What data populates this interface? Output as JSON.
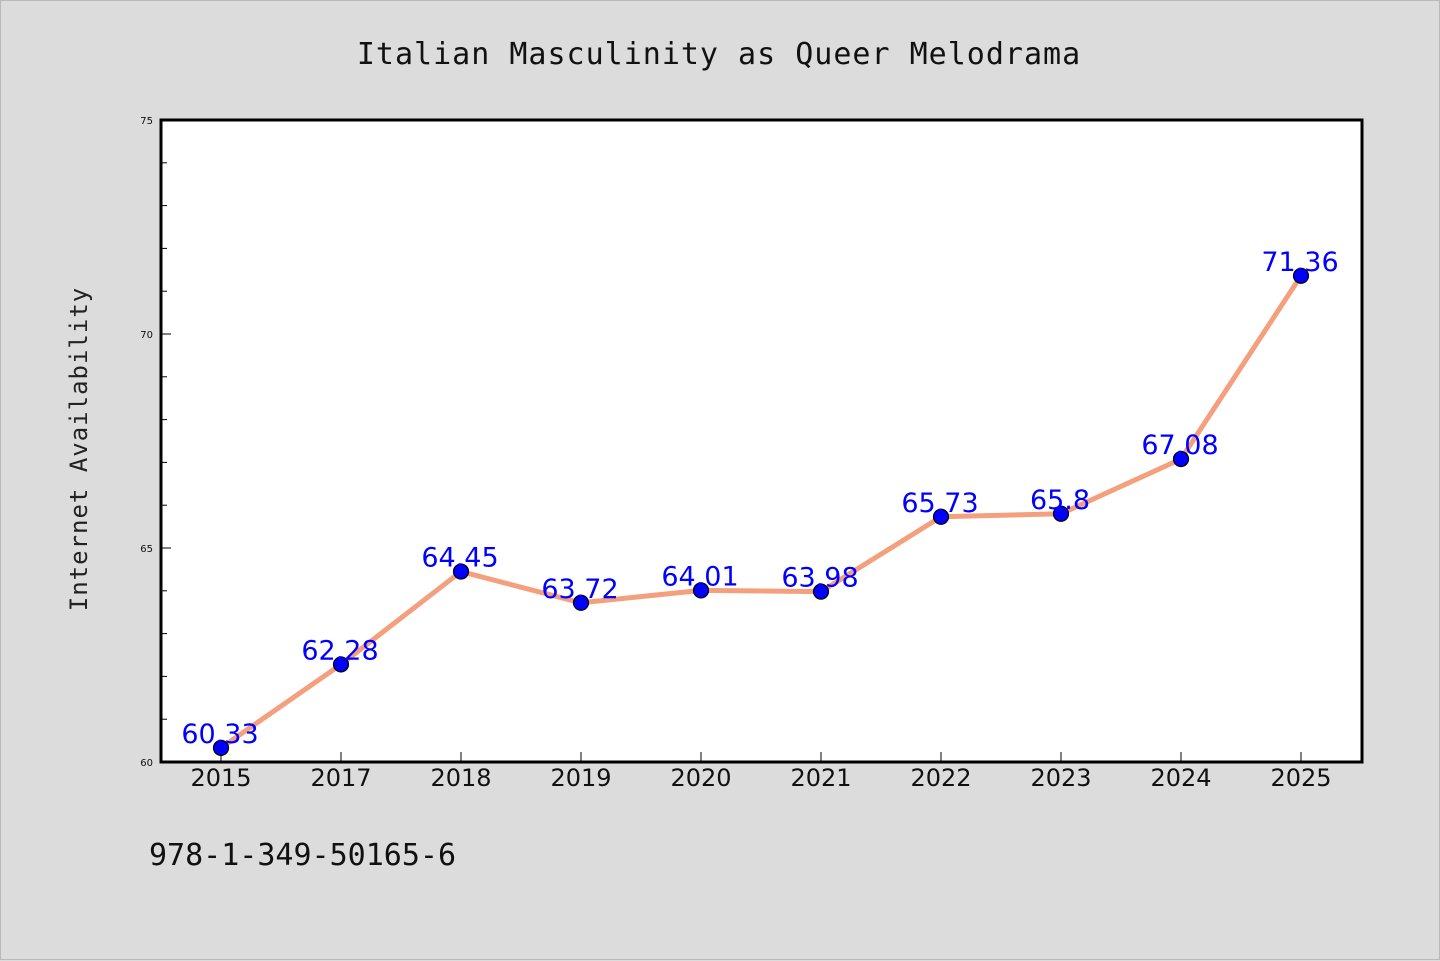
{
  "chart_data": {
    "type": "line",
    "title": "Italian Masculinity as Queer Melodrama",
    "xlabel": "",
    "ylabel": "Internet Availability",
    "categories": [
      "2015",
      "2017",
      "2018",
      "2019",
      "2020",
      "2021",
      "2022",
      "2023",
      "2024",
      "2025"
    ],
    "series": [
      {
        "values": [
          60.33,
          62.28,
          64.45,
          63.72,
          64.01,
          63.98,
          65.73,
          65.8,
          67.08,
          71.36
        ],
        "data_labels": [
          "60.33",
          "62.28",
          "64.45",
          "63.72",
          "64.01",
          "63.98",
          "65.73",
          "65.8",
          "67.08",
          "71.36"
        ]
      }
    ],
    "ylim": [
      60,
      75
    ],
    "yticks": [
      60,
      65,
      70,
      75
    ],
    "grid": false,
    "legend": "none",
    "colors": {
      "line": "#f4a07e",
      "marker": "#0000ff",
      "data_label": "#0000ff",
      "background": "#dcdcdc",
      "plot_area": "#ffffff"
    }
  },
  "footer": {
    "code": "978-1-349-50165-6"
  }
}
